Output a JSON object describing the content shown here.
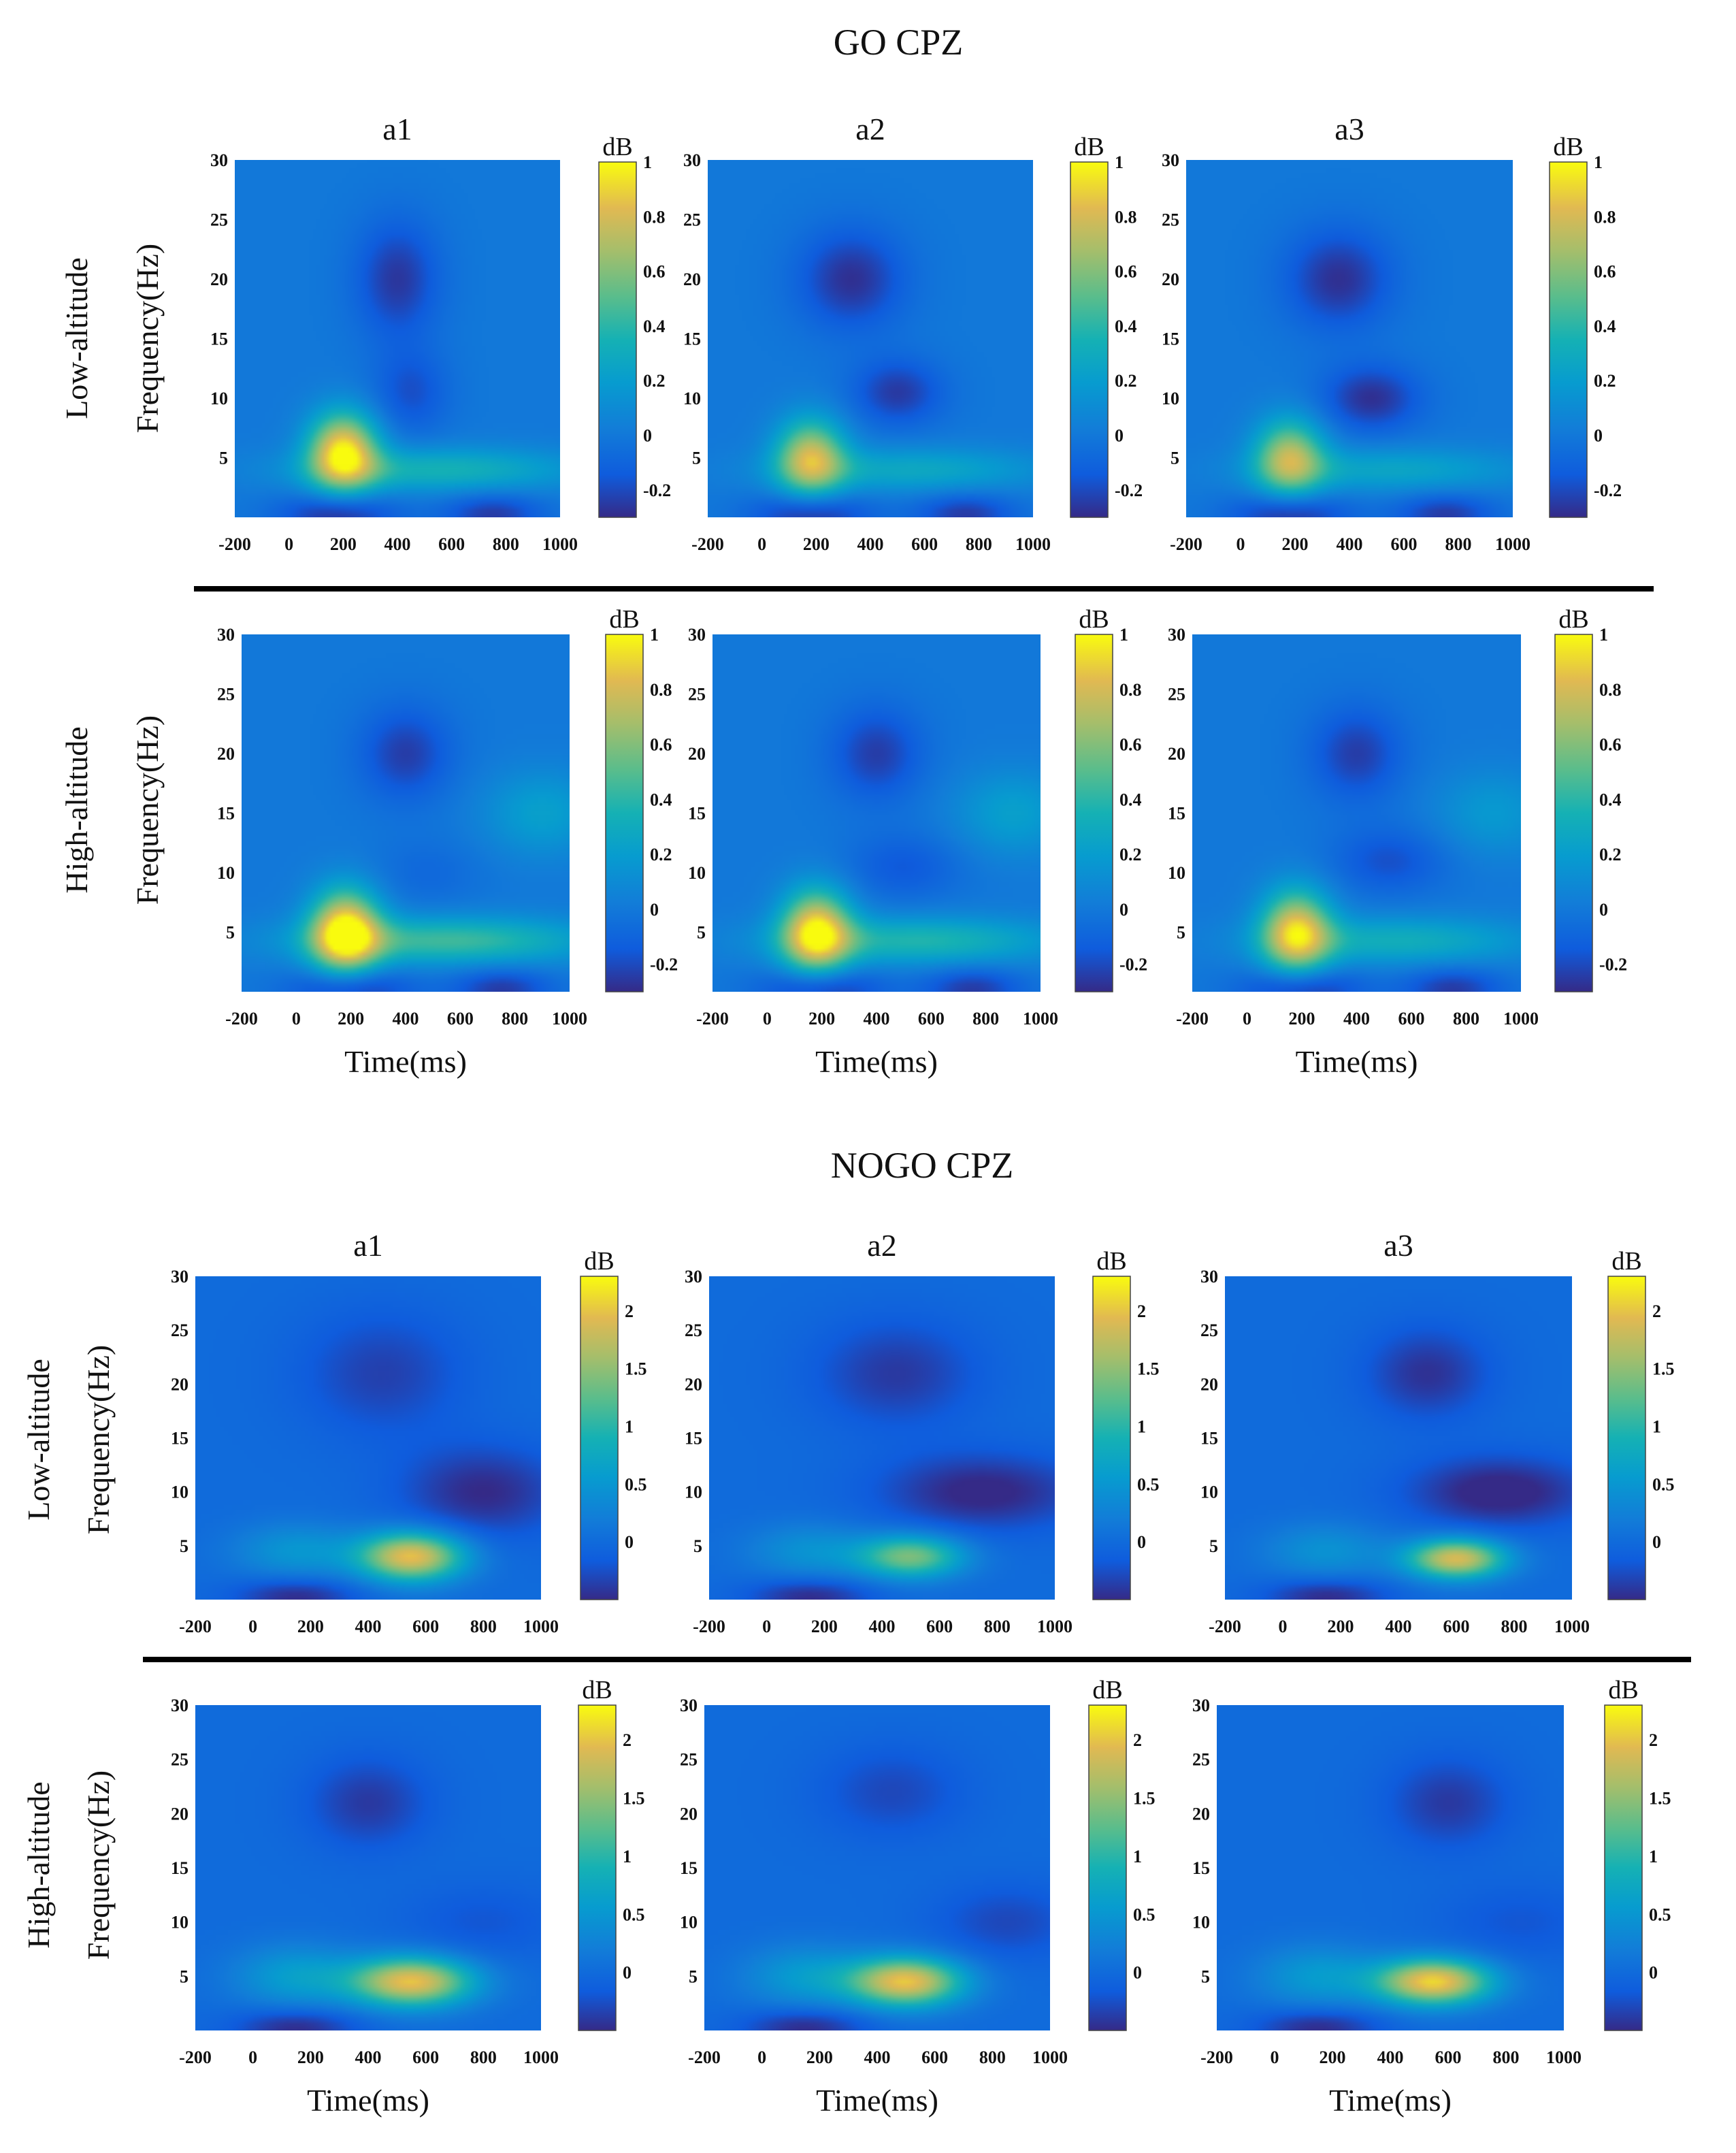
{
  "figure": {
    "title_go": "GO CPZ",
    "title_nogo": "NOGO CPZ"
  },
  "chart_data": [
    {
      "type": "heatmap",
      "section": "GO CPZ",
      "row": "Low-altitude",
      "colorbar": {
        "unit": "dB",
        "range": [
          -0.3,
          1
        ],
        "ticks": [
          "1",
          "0.8",
          "0.6",
          "0.4",
          "0.2",
          "0",
          "-0.2"
        ]
      },
      "x": {
        "label": "",
        "ticks": [
          "-200",
          "0",
          "200",
          "400",
          "600",
          "800",
          "1000"
        ],
        "range": [
          -200,
          1000
        ]
      },
      "y": {
        "label": "Frequency(Hz)",
        "ticks": [
          "30",
          "25",
          "20",
          "15",
          "10",
          "5"
        ],
        "range": [
          0,
          30
        ]
      },
      "panels": [
        {
          "title": "a1",
          "blobs": [
            {
              "t": 200,
              "f": 5.5,
              "st": 90,
              "sf": 2.3,
              "v": 0.95
            },
            {
              "t": 550,
              "f": 4,
              "st": 360,
              "sf": 1.3,
              "v": 0.35
            },
            {
              "t": 400,
              "f": 20,
              "st": 110,
              "sf": 3.5,
              "v": -0.26
            },
            {
              "t": 450,
              "f": 10.5,
              "st": 100,
              "sf": 2.5,
              "v": -0.18
            },
            {
              "t": 180,
              "f": 0.3,
              "st": 150,
              "sf": 1.2,
              "v": -0.3
            },
            {
              "t": 750,
              "f": 0.3,
              "st": 130,
              "sf": 1.2,
              "v": -0.25
            }
          ]
        },
        {
          "title": "a2",
          "blobs": [
            {
              "t": 180,
              "f": 5,
              "st": 90,
              "sf": 2.3,
              "v": 0.75
            },
            {
              "t": 550,
              "f": 4,
              "st": 340,
              "sf": 1.3,
              "v": 0.28
            },
            {
              "t": 330,
              "f": 20,
              "st": 140,
              "sf": 3,
              "v": -0.28
            },
            {
              "t": 500,
              "f": 10.5,
              "st": 120,
              "sf": 2,
              "v": -0.25
            },
            {
              "t": 180,
              "f": 0.3,
              "st": 150,
              "sf": 1.2,
              "v": -0.3
            },
            {
              "t": 750,
              "f": 0.3,
              "st": 130,
              "sf": 1.2,
              "v": -0.25
            }
          ]
        },
        {
          "title": "a3",
          "blobs": [
            {
              "t": 180,
              "f": 5,
              "st": 90,
              "sf": 2.3,
              "v": 0.7
            },
            {
              "t": 550,
              "f": 4,
              "st": 340,
              "sf": 1.3,
              "v": 0.26
            },
            {
              "t": 360,
              "f": 20,
              "st": 140,
              "sf": 3,
              "v": -0.28
            },
            {
              "t": 480,
              "f": 10,
              "st": 130,
              "sf": 2,
              "v": -0.28
            },
            {
              "t": 180,
              "f": 0.3,
              "st": 150,
              "sf": 1.2,
              "v": -0.3
            },
            {
              "t": 750,
              "f": 0.3,
              "st": 130,
              "sf": 1.2,
              "v": -0.25
            }
          ]
        }
      ]
    },
    {
      "type": "heatmap",
      "section": "GO CPZ",
      "row": "High-altitude",
      "colorbar": {
        "unit": "dB",
        "range": [
          -0.3,
          1
        ],
        "ticks": [
          "1",
          "0.8",
          "0.6",
          "0.4",
          "0.2",
          "0",
          "-0.2"
        ]
      },
      "x": {
        "label": "Time(ms)",
        "ticks": [
          "-200",
          "0",
          "200",
          "400",
          "600",
          "800",
          "1000"
        ],
        "range": [
          -200,
          1000
        ]
      },
      "y": {
        "label": "Frequency(Hz)",
        "ticks": [
          "30",
          "25",
          "20",
          "15",
          "10",
          "5"
        ],
        "range": [
          0,
          30
        ]
      },
      "panels": [
        {
          "title": "",
          "blobs": [
            {
              "t": 180,
              "f": 5,
              "st": 90,
              "sf": 2.5,
              "v": 1.0
            },
            {
              "t": 550,
              "f": 4.3,
              "st": 380,
              "sf": 1.4,
              "v": 0.45
            },
            {
              "t": 400,
              "f": 20,
              "st": 120,
              "sf": 2.8,
              "v": -0.24
            },
            {
              "t": 900,
              "f": 15,
              "st": 150,
              "sf": 2.5,
              "v": 0.22
            },
            {
              "t": 480,
              "f": 10,
              "st": 140,
              "sf": 2,
              "v": -0.08
            },
            {
              "t": 200,
              "f": 0.3,
              "st": 150,
              "sf": 1.2,
              "v": -0.3
            },
            {
              "t": 750,
              "f": 0.3,
              "st": 130,
              "sf": 1.2,
              "v": -0.25
            }
          ]
        },
        {
          "title": "",
          "blobs": [
            {
              "t": 180,
              "f": 5,
              "st": 90,
              "sf": 2.5,
              "v": 0.92
            },
            {
              "t": 550,
              "f": 4.3,
              "st": 360,
              "sf": 1.4,
              "v": 0.38
            },
            {
              "t": 400,
              "f": 20,
              "st": 120,
              "sf": 2.8,
              "v": -0.24
            },
            {
              "t": 900,
              "f": 15,
              "st": 150,
              "sf": 2.5,
              "v": 0.22
            },
            {
              "t": 500,
              "f": 10.5,
              "st": 150,
              "sf": 2,
              "v": -0.15
            },
            {
              "t": 200,
              "f": 0.3,
              "st": 150,
              "sf": 1.2,
              "v": -0.3
            },
            {
              "t": 750,
              "f": 0.3,
              "st": 130,
              "sf": 1.2,
              "v": -0.25
            }
          ]
        },
        {
          "title": "",
          "blobs": [
            {
              "t": 180,
              "f": 5,
              "st": 90,
              "sf": 2.5,
              "v": 0.85
            },
            {
              "t": 550,
              "f": 4.3,
              "st": 340,
              "sf": 1.4,
              "v": 0.32
            },
            {
              "t": 400,
              "f": 20,
              "st": 120,
              "sf": 2.8,
              "v": -0.24
            },
            {
              "t": 900,
              "f": 15,
              "st": 150,
              "sf": 2.5,
              "v": 0.18
            },
            {
              "t": 520,
              "f": 11,
              "st": 150,
              "sf": 2,
              "v": -0.18
            },
            {
              "t": 200,
              "f": 0.3,
              "st": 150,
              "sf": 1.2,
              "v": -0.3
            },
            {
              "t": 750,
              "f": 0.3,
              "st": 130,
              "sf": 1.2,
              "v": -0.25
            }
          ]
        }
      ]
    },
    {
      "type": "heatmap",
      "section": "NOGO CPZ",
      "row": "Low-altitude",
      "colorbar": {
        "unit": "dB",
        "range": [
          -0.5,
          2.3
        ],
        "ticks": [
          "2",
          "1.5",
          "1",
          "0.5",
          "0"
        ]
      },
      "x": {
        "label": "",
        "ticks": [
          "-200",
          "0",
          "200",
          "400",
          "600",
          "800",
          "1000"
        ],
        "range": [
          -200,
          1000
        ]
      },
      "y": {
        "label": "Frequency(Hz)",
        "ticks": [
          "30",
          "25",
          "20",
          "15",
          "10",
          "5"
        ],
        "range": [
          0,
          30
        ]
      },
      "panels": [
        {
          "title": "a1",
          "blobs": [
            {
              "t": 550,
              "f": 4,
              "st": 130,
              "sf": 1.6,
              "v": 2.0
            },
            {
              "t": 150,
              "f": 4.5,
              "st": 150,
              "sf": 1.8,
              "v": 0.5
            },
            {
              "t": 800,
              "f": 10,
              "st": 200,
              "sf": 3,
              "v": -0.5
            },
            {
              "t": 450,
              "f": 21,
              "st": 200,
              "sf": 4,
              "v": -0.35
            },
            {
              "t": 150,
              "f": 0.3,
              "st": 150,
              "sf": 1.2,
              "v": -0.5
            }
          ]
        },
        {
          "title": "a2",
          "blobs": [
            {
              "t": 500,
              "f": 4,
              "st": 130,
              "sf": 1.4,
              "v": 1.4
            },
            {
              "t": 150,
              "f": 4.5,
              "st": 150,
              "sf": 1.8,
              "v": 0.45
            },
            {
              "t": 750,
              "f": 10,
              "st": 250,
              "sf": 2.5,
              "v": -0.55
            },
            {
              "t": 450,
              "f": 21,
              "st": 200,
              "sf": 3.5,
              "v": -0.4
            },
            {
              "t": 150,
              "f": 0.3,
              "st": 150,
              "sf": 1.2,
              "v": -0.5
            }
          ]
        },
        {
          "title": "a3",
          "blobs": [
            {
              "t": 600,
              "f": 3.8,
              "st": 120,
              "sf": 1.3,
              "v": 1.9
            },
            {
              "t": 150,
              "f": 4.5,
              "st": 150,
              "sf": 1.8,
              "v": 0.45
            },
            {
              "t": 750,
              "f": 10,
              "st": 220,
              "sf": 2.3,
              "v": -0.6
            },
            {
              "t": 500,
              "f": 21,
              "st": 150,
              "sf": 3,
              "v": -0.45
            },
            {
              "t": 150,
              "f": 0.3,
              "st": 150,
              "sf": 1.2,
              "v": -0.5
            }
          ]
        }
      ]
    },
    {
      "type": "heatmap",
      "section": "NOGO CPZ",
      "row": "High-altitude",
      "colorbar": {
        "unit": "dB",
        "range": [
          -0.5,
          2.3
        ],
        "ticks": [
          "2",
          "1.5",
          "1",
          "0.5",
          "0"
        ]
      },
      "x": {
        "label": "Time(ms)",
        "ticks": [
          "-200",
          "0",
          "200",
          "400",
          "600",
          "800",
          "1000"
        ],
        "range": [
          -200,
          1000
        ]
      },
      "y": {
        "label": "Frequency(Hz)",
        "ticks": [
          "30",
          "25",
          "20",
          "15",
          "10",
          "5"
        ],
        "range": [
          0,
          30
        ]
      },
      "panels": [
        {
          "title": "",
          "blobs": [
            {
              "t": 550,
              "f": 4.5,
              "st": 150,
              "sf": 1.6,
              "v": 2.0
            },
            {
              "t": 150,
              "f": 5,
              "st": 150,
              "sf": 2,
              "v": 0.6
            },
            {
              "t": 400,
              "f": 21,
              "st": 150,
              "sf": 3,
              "v": -0.4
            },
            {
              "t": 800,
              "f": 10,
              "st": 200,
              "sf": 2.5,
              "v": -0.2
            },
            {
              "t": 150,
              "f": 0.3,
              "st": 150,
              "sf": 1.2,
              "v": -0.5
            }
          ]
        },
        {
          "title": "",
          "blobs": [
            {
              "t": 500,
              "f": 4.5,
              "st": 140,
              "sf": 1.6,
              "v": 2.0
            },
            {
              "t": 150,
              "f": 5,
              "st": 150,
              "sf": 2,
              "v": 0.55
            },
            {
              "t": 450,
              "f": 22,
              "st": 180,
              "sf": 3,
              "v": -0.3
            },
            {
              "t": 850,
              "f": 10,
              "st": 180,
              "sf": 2.5,
              "v": -0.3
            },
            {
              "t": 150,
              "f": 0.3,
              "st": 150,
              "sf": 1.2,
              "v": -0.5
            }
          ]
        },
        {
          "title": "",
          "blobs": [
            {
              "t": 550,
              "f": 4.5,
              "st": 140,
              "sf": 1.5,
              "v": 2.1
            },
            {
              "t": 150,
              "f": 5,
              "st": 150,
              "sf": 2,
              "v": 0.55
            },
            {
              "t": 600,
              "f": 21,
              "st": 150,
              "sf": 3,
              "v": -0.4
            },
            {
              "t": 850,
              "f": 10,
              "st": 200,
              "sf": 2.5,
              "v": -0.2
            },
            {
              "t": 150,
              "f": 0.3,
              "st": 150,
              "sf": 1.2,
              "v": -0.5
            }
          ]
        }
      ]
    }
  ]
}
